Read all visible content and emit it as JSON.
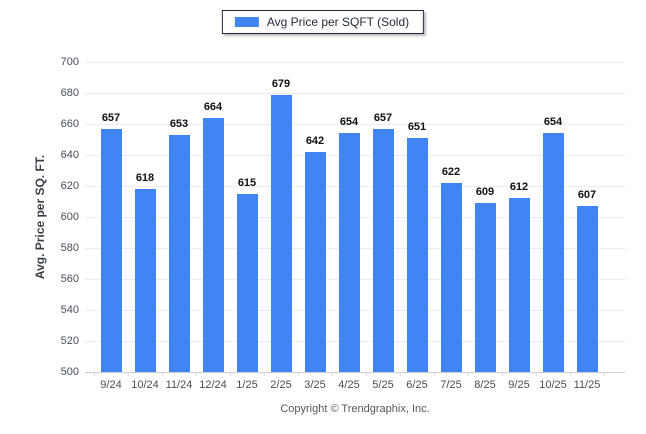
{
  "chart": {
    "legend_label": "Avg Price per SQFT (Sold)",
    "ylabel": "Avg. Price per SQ. FT.",
    "footer": "Copyright © Trendgraphix, Inc."
  },
  "chart_data": {
    "type": "bar",
    "title": "Avg Price per SQFT (Sold)",
    "categories": [
      "9/24",
      "10/24",
      "11/24",
      "12/24",
      "1/25",
      "2/25",
      "3/25",
      "4/25",
      "5/25",
      "6/25",
      "7/25",
      "8/25",
      "9/25",
      "10/25",
      "11/25"
    ],
    "values": [
      657,
      618,
      653,
      664,
      615,
      679,
      642,
      654,
      657,
      651,
      622,
      609,
      612,
      654,
      607
    ],
    "xlabel": "",
    "ylabel": "Avg. Price per SQ. FT.",
    "ylim": [
      500,
      700
    ],
    "ytick_step": 20,
    "grid": true,
    "legend_position": "top-center",
    "bar_color": "#4184f3",
    "value_label_color": "#111111",
    "axis_text_color": "#474f5a",
    "gridline_color": "#e9eef3",
    "baseline_color": "#c9ced6"
  }
}
